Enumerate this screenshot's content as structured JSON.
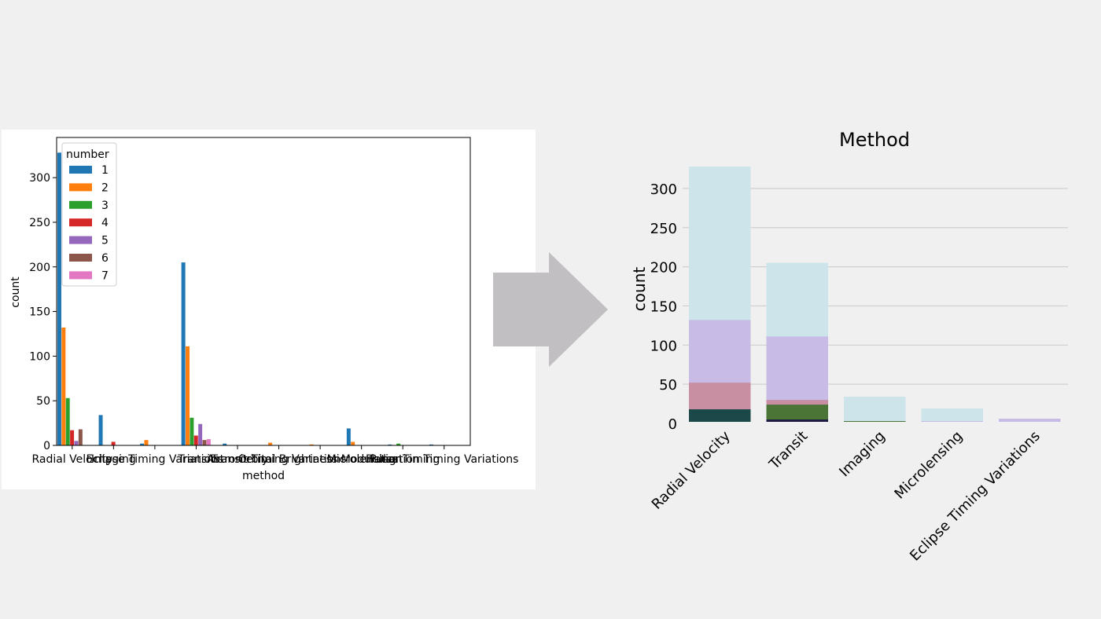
{
  "left_chart": {
    "type": "bar",
    "xlabel": "method",
    "ylabel": "count",
    "ylim": [
      0,
      345
    ],
    "yticks": [
      0,
      50,
      100,
      150,
      200,
      250,
      300
    ],
    "legend_title": "number",
    "legend_placement": "top-left",
    "categories": [
      "Radial Velocity",
      "Imaging",
      "Eclipse Timing Variations",
      "Transit",
      "Astrometry",
      "Transit Timing Variations",
      "Orbital Brightness Modulation",
      "Microlensing",
      "Pulsar Timing",
      "Pulsation Timing Variations"
    ],
    "series": [
      {
        "name": "1",
        "color": "#1f77b4",
        "values": [
          328,
          34,
          2,
          205,
          2,
          0,
          0,
          19,
          1,
          1
        ]
      },
      {
        "name": "2",
        "color": "#ff7f0e",
        "values": [
          132,
          0,
          6,
          111,
          0,
          3,
          1,
          4,
          0,
          0
        ]
      },
      {
        "name": "3",
        "color": "#2ca02c",
        "values": [
          53,
          0,
          0,
          31,
          0,
          0,
          0,
          0,
          2,
          0
        ]
      },
      {
        "name": "4",
        "color": "#d62728",
        "values": [
          17,
          4,
          0,
          11,
          0,
          0,
          0,
          0,
          0,
          0
        ]
      },
      {
        "name": "5",
        "color": "#9467bd",
        "values": [
          5,
          0,
          0,
          24,
          0,
          0,
          0,
          0,
          0,
          0
        ]
      },
      {
        "name": "6",
        "color": "#8c564b",
        "values": [
          18,
          0,
          0,
          6,
          0,
          0,
          0,
          0,
          0,
          0
        ]
      },
      {
        "name": "7",
        "color": "#e377c2",
        "values": [
          0,
          0,
          0,
          7,
          0,
          0,
          0,
          0,
          0,
          0
        ]
      }
    ]
  },
  "right_chart": {
    "type": "bar",
    "title": "Method",
    "ylabel": "count",
    "ylim": [
      0,
      330
    ],
    "yticks": [
      0,
      50,
      100,
      150,
      200,
      250,
      300
    ],
    "grid": true,
    "categories": [
      "Radial Velocity",
      "Transit",
      "Imaging",
      "Microlensing",
      "Eclipse Timing Variations"
    ],
    "layers": [
      {
        "color": "#cde4ea",
        "values": [
          328,
          205,
          34,
          19,
          0
        ]
      },
      {
        "color": "#c8bbe6",
        "values": [
          132,
          111,
          0,
          3,
          6
        ]
      },
      {
        "color": "#c88ea2",
        "values": [
          52,
          30,
          0,
          0,
          0
        ]
      },
      {
        "color": "#4b7437",
        "values": [
          0,
          24,
          3,
          0,
          0
        ]
      },
      {
        "color": "#1b4848",
        "values": [
          18,
          0,
          0,
          0,
          0
        ]
      },
      {
        "color": "#1c1c44",
        "values": [
          0,
          5,
          0,
          0,
          0
        ]
      }
    ]
  },
  "arrow": {
    "color": "#c1bfc2"
  }
}
